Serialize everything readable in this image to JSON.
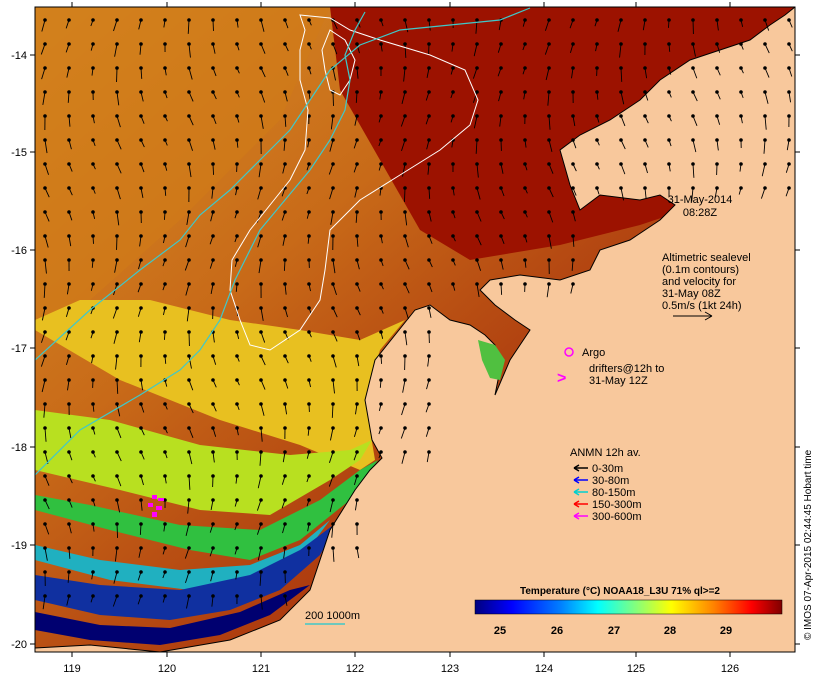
{
  "timestamp": {
    "date": "31-May-2014",
    "time": "08:28Z"
  },
  "altimetry": {
    "lines": [
      "Altimetric sealevel",
      "(0.1m contours)",
      "and velocity for",
      "31-May 08Z",
      "0.5m/s (1kt 24h)"
    ]
  },
  "argo": {
    "label": "Argo",
    "color": "#ff00ff"
  },
  "drifters": {
    "symbol": ">",
    "lines": [
      "drifters@12h to",
      "31-May 12Z"
    ],
    "color": "#ff00ff"
  },
  "anmn": {
    "title": "ANMN 12h av.",
    "items": [
      {
        "label": "0-30m",
        "color": "#000000"
      },
      {
        "label": "30-80m",
        "color": "#0000ff"
      },
      {
        "label": "80-150m",
        "color": "#00d0d0"
      },
      {
        "label": "150-300m",
        "color": "#ff0000"
      },
      {
        "label": "300-600m",
        "color": "#ff00ff"
      }
    ]
  },
  "colorbar": {
    "title": "Temperature (°C) NOAA18_L3U 71% ql>=2",
    "ticks": [
      "25",
      "26",
      "27",
      "28",
      "29"
    ],
    "colors": [
      "#00007f",
      "#0000ff",
      "#007fff",
      "#00ffff",
      "#7fff7f",
      "#ffff00",
      "#ff7f00",
      "#ff0000",
      "#7f0000"
    ]
  },
  "isobath": {
    "label": "200  1000m",
    "color": "#40c8c8"
  },
  "credit": "© IMOS 07-Apr-2015 02:44:45 Hobart time",
  "axes": {
    "x_ticks": [
      "119",
      "120",
      "121",
      "122",
      "123",
      "124",
      "125",
      "126"
    ],
    "y_ticks": [
      "-14",
      "-15",
      "-16",
      "-17",
      "-18",
      "-19",
      "-20"
    ]
  },
  "colors": {
    "land": "#f8c89c",
    "warm": "#a01000",
    "sst_mid": "#e8a020",
    "cool": "#10208a",
    "frame": "#000000"
  }
}
